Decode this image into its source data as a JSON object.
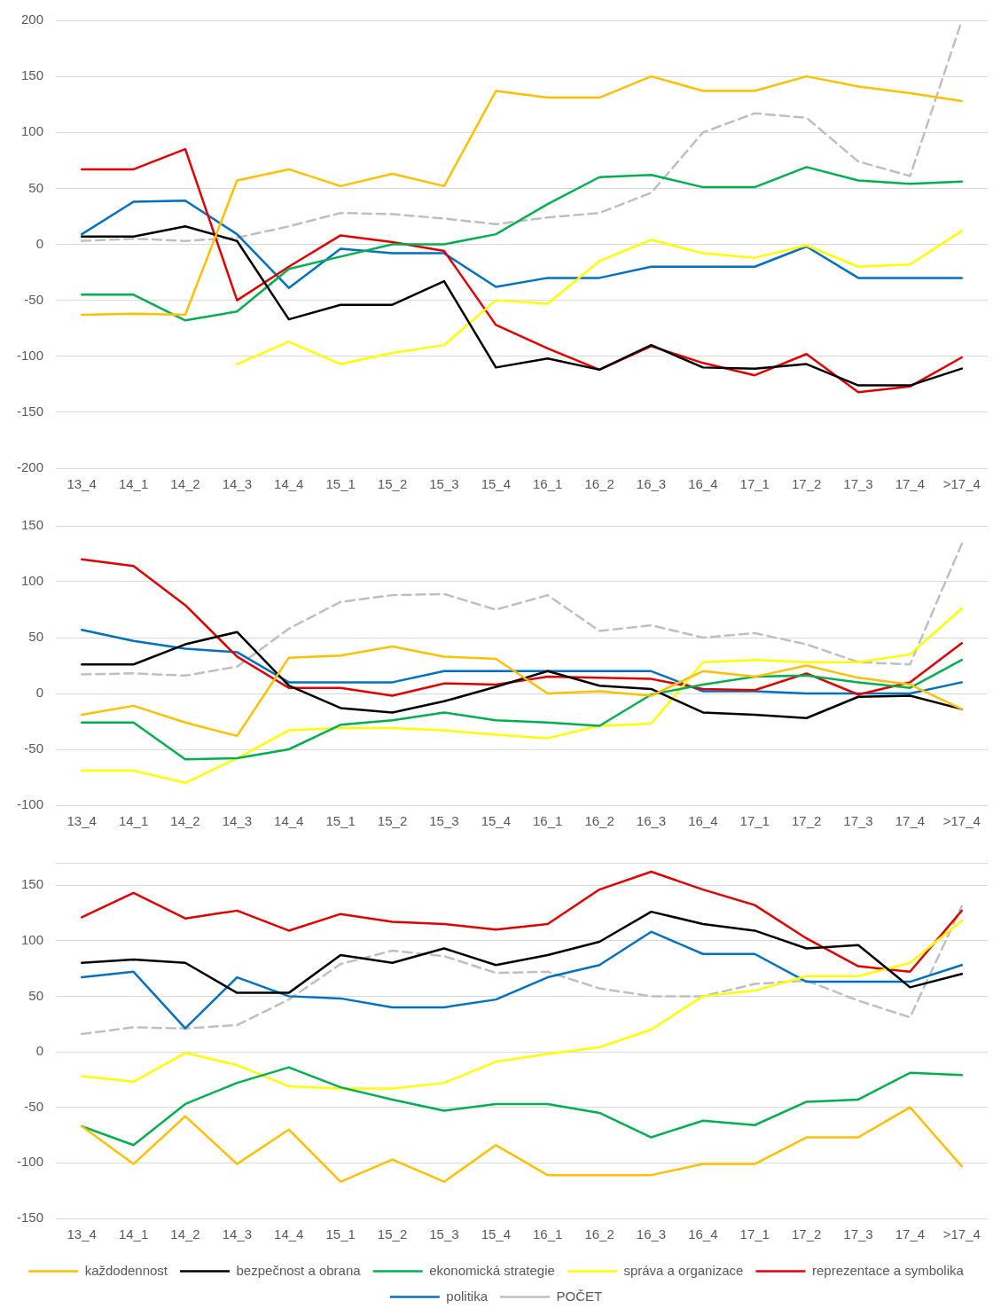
{
  "chart_data": [
    {
      "type": "line",
      "categories": [
        "13_4",
        "14_1",
        "14_2",
        "14_3",
        "14_4",
        "15_1",
        "15_2",
        "15_3",
        "15_4",
        "16_1",
        "16_2",
        "16_3",
        "16_4",
        "17_1",
        "17_2",
        "17_3",
        "17_4",
        ">17_4"
      ],
      "ylim": [
        -200,
        200
      ],
      "yticks": [
        -200,
        -150,
        -100,
        -50,
        0,
        50,
        100,
        150,
        200
      ],
      "grid": "y",
      "legend": false,
      "marker": "none",
      "line_style": "solid",
      "series": [
        {
          "color": "#ffc000",
          "values": [
            -63,
            -62,
            -63,
            57,
            67,
            52,
            63,
            52,
            137,
            131,
            131,
            150,
            137,
            137,
            150,
            141,
            135,
            128
          ]
        },
        {
          "color": "#000000",
          "values": [
            7,
            7,
            16,
            3,
            -67,
            -54,
            -54,
            -33,
            -110,
            -102,
            -112,
            -90,
            -110,
            -111,
            -107,
            -126,
            -126,
            -111
          ]
        },
        {
          "color": "#00b050",
          "values": [
            -45,
            -45,
            -68,
            -60,
            -22,
            -11,
            0,
            0,
            9,
            36,
            60,
            62,
            51,
            51,
            69,
            57,
            54,
            56
          ]
        },
        {
          "color": "#ffff00",
          "values": [
            null,
            null,
            null,
            -107,
            -87,
            -107,
            -97,
            -90,
            -50,
            -53,
            -15,
            4,
            -8,
            -12,
            -1,
            -20,
            -18,
            12
          ]
        },
        {
          "color": "#e00000",
          "values": [
            67,
            67,
            85,
            -50,
            -20,
            8,
            2,
            -6,
            -72,
            -93,
            -112,
            -91,
            -106,
            -117,
            -98,
            -132,
            -127,
            -101
          ]
        },
        {
          "color": "#0070c0",
          "values": [
            9,
            38,
            39,
            9,
            -39,
            -4,
            -8,
            -8,
            -38,
            -30,
            -30,
            -20,
            -20,
            -20,
            -2,
            -30,
            -30,
            -30
          ]
        },
        {
          "color": "#bfbfbf",
          "line_style": "dashed",
          "values": [
            3,
            5,
            3,
            6,
            16,
            28,
            27,
            23,
            18,
            24,
            28,
            46,
            100,
            117,
            113,
            74,
            61,
            200
          ]
        }
      ]
    },
    {
      "type": "line",
      "categories": [
        "13_4",
        "14_1",
        "14_2",
        "14_3",
        "14_4",
        "15_1",
        "15_2",
        "15_3",
        "15_4",
        "16_1",
        "16_2",
        "16_3",
        "16_4",
        "17_1",
        "17_2",
        "17_3",
        "17_4",
        ">17_4"
      ],
      "ylim": [
        -100,
        150
      ],
      "yticks": [
        -100,
        -50,
        0,
        50,
        100,
        150
      ],
      "grid": "y",
      "legend": false,
      "marker": "none",
      "line_style": "solid",
      "series": [
        {
          "color": "#ffc000",
          "values": [
            -19,
            -11,
            -26,
            -38,
            32,
            34,
            42,
            33,
            31,
            0,
            2,
            -2,
            20,
            15,
            25,
            14,
            8,
            -14
          ]
        },
        {
          "color": "#000000",
          "values": [
            26,
            26,
            44,
            55,
            7,
            -13,
            -17,
            -7,
            6,
            20,
            7,
            4,
            -17,
            -19,
            -22,
            -3,
            -2,
            -14
          ]
        },
        {
          "color": "#00b050",
          "values": [
            -26,
            -26,
            -59,
            -58,
            -50,
            -28,
            -24,
            -17,
            -24,
            -26,
            -29,
            -1,
            8,
            15,
            16,
            10,
            5,
            30
          ]
        },
        {
          "color": "#ffff00",
          "values": [
            -69,
            -69,
            -80,
            -58,
            -33,
            -31,
            -31,
            -33,
            -37,
            -40,
            -29,
            -27,
            28,
            30,
            28,
            28,
            35,
            76
          ]
        },
        {
          "color": "#e00000",
          "values": [
            120,
            114,
            79,
            33,
            5,
            5,
            -2,
            9,
            8,
            15,
            14,
            13,
            4,
            3,
            18,
            -1,
            10,
            45
          ]
        },
        {
          "color": "#0070c0",
          "values": [
            57,
            47,
            40,
            37,
            10,
            10,
            10,
            20,
            20,
            20,
            20,
            20,
            2,
            2,
            0,
            0,
            0,
            10
          ]
        },
        {
          "color": "#bfbfbf",
          "line_style": "dashed",
          "values": [
            17,
            18,
            16,
            24,
            58,
            82,
            88,
            89,
            75,
            88,
            56,
            61,
            50,
            54,
            44,
            28,
            26,
            134
          ]
        }
      ]
    },
    {
      "type": "line",
      "categories": [
        "13_4",
        "14_1",
        "14_2",
        "14_3",
        "14_4",
        "15_1",
        "15_2",
        "15_3",
        "15_4",
        "16_1",
        "16_2",
        "16_3",
        "16_4",
        "17_1",
        "17_2",
        "17_3",
        "17_4",
        ">17_4"
      ],
      "ylim": [
        -150,
        170
      ],
      "yticks": [
        -150,
        -100,
        -50,
        0,
        50,
        100,
        150,
        {
          "value": 170,
          "label": null
        }
      ],
      "grid": "y",
      "legend": "bottom",
      "marker": "none",
      "line_style": "solid",
      "series": [
        {
          "name": "každodennost",
          "color": "#ffc000",
          "values": [
            -67,
            -101,
            -58,
            -101,
            -70,
            -117,
            -97,
            -117,
            -84,
            -111,
            -111,
            -111,
            -101,
            -101,
            -77,
            -77,
            -50,
            -103
          ]
        },
        {
          "name": "bezpečnost a obrana",
          "color": "#000000",
          "values": [
            80,
            83,
            80,
            53,
            53,
            87,
            80,
            93,
            78,
            87,
            99,
            126,
            115,
            109,
            93,
            96,
            58,
            70
          ]
        },
        {
          "name": "ekonomická strategie",
          "color": "#00b050",
          "values": [
            -67,
            -84,
            -47,
            -28,
            -14,
            -32,
            -43,
            -53,
            -47,
            -47,
            -55,
            -77,
            -62,
            -66,
            -45,
            -43,
            -19,
            -21
          ]
        },
        {
          "name": "správa a organizace",
          "color": "#ffff00",
          "values": [
            -22,
            -27,
            -1,
            -12,
            -31,
            -33,
            -33,
            -28,
            -9,
            -2,
            4,
            20,
            50,
            55,
            68,
            68,
            80,
            118
          ]
        },
        {
          "name": "reprezentace a symbolika",
          "color": "#e00000",
          "values": [
            121,
            143,
            120,
            127,
            109,
            124,
            117,
            115,
            110,
            115,
            146,
            162,
            146,
            132,
            102,
            77,
            72,
            127
          ]
        },
        {
          "name": "politika",
          "color": "#0070c0",
          "values": [
            67,
            72,
            21,
            67,
            50,
            48,
            40,
            40,
            47,
            67,
            78,
            108,
            88,
            88,
            63,
            63,
            63,
            78
          ]
        },
        {
          "name": "POČET",
          "color": "#bfbfbf",
          "line_style": "dashed",
          "values": [
            16,
            22,
            21,
            24,
            47,
            79,
            91,
            86,
            71,
            72,
            57,
            50,
            50,
            61,
            64,
            46,
            31,
            131
          ]
        }
      ]
    }
  ]
}
